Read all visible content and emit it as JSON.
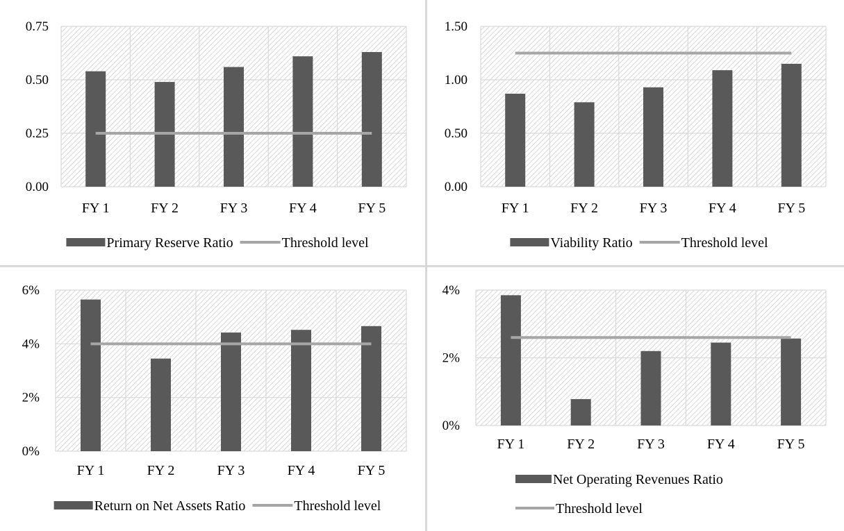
{
  "colors": {
    "bar": "#595959",
    "threshold": "#a6a6a6",
    "gridline": "#d9d9d9",
    "hatch": "#c8c8c8"
  },
  "chart_data": [
    {
      "type": "bar",
      "categories": [
        "FY 1",
        "FY 2",
        "FY 3",
        "FY 4",
        "FY 5"
      ],
      "series": [
        {
          "name": "Primary Reserve Ratio",
          "kind": "bar",
          "values": [
            0.54,
            0.49,
            0.56,
            0.61,
            0.63
          ]
        },
        {
          "name": "Threshold level",
          "kind": "line",
          "values": [
            0.25,
            0.25,
            0.25,
            0.25,
            0.25
          ]
        }
      ],
      "yticks": [
        "0.00",
        "0.25",
        "0.50",
        "0.75"
      ],
      "ylim": [
        0,
        0.75
      ],
      "grid": true,
      "legend": "bottom"
    },
    {
      "type": "bar",
      "categories": [
        "FY 1",
        "FY 2",
        "FY 3",
        "FY 4",
        "FY 5"
      ],
      "series": [
        {
          "name": "Viability Ratio",
          "kind": "bar",
          "values": [
            0.87,
            0.79,
            0.93,
            1.09,
            1.15
          ]
        },
        {
          "name": "Threshold level",
          "kind": "line",
          "values": [
            1.25,
            1.25,
            1.25,
            1.25,
            1.25
          ]
        }
      ],
      "yticks": [
        "0.00",
        "0.50",
        "1.00",
        "1.50"
      ],
      "ylim": [
        0,
        1.5
      ],
      "grid": true,
      "legend": "bottom"
    },
    {
      "type": "bar",
      "categories": [
        "FY 1",
        "FY 2",
        "FY 3",
        "FY 4",
        "FY 5"
      ],
      "series": [
        {
          "name": "Return on Net Assets Ratio",
          "kind": "bar",
          "values": [
            5.65,
            3.45,
            4.42,
            4.52,
            4.66
          ]
        },
        {
          "name": "Threshold level",
          "kind": "line",
          "values": [
            4,
            4,
            4,
            4,
            4
          ]
        }
      ],
      "yticks": [
        "0%",
        "2%",
        "4%",
        "6%"
      ],
      "ylim": [
        0,
        6
      ],
      "grid": true,
      "legend": "bottom"
    },
    {
      "type": "bar",
      "categories": [
        "FY 1",
        "FY 2",
        "FY 3",
        "FY 4",
        "FY 5"
      ],
      "series": [
        {
          "name": "Net Operating Revenues Ratio",
          "kind": "bar",
          "values": [
            3.85,
            0.78,
            2.2,
            2.45,
            2.57
          ]
        },
        {
          "name": "Threshold level",
          "kind": "line",
          "values": [
            2.6,
            2.6,
            2.6,
            2.6,
            2.6
          ]
        }
      ],
      "yticks": [
        "0%",
        "2%",
        "4%"
      ],
      "ylim": [
        0,
        4
      ],
      "grid": true,
      "legend": "bottom-stacked"
    }
  ]
}
